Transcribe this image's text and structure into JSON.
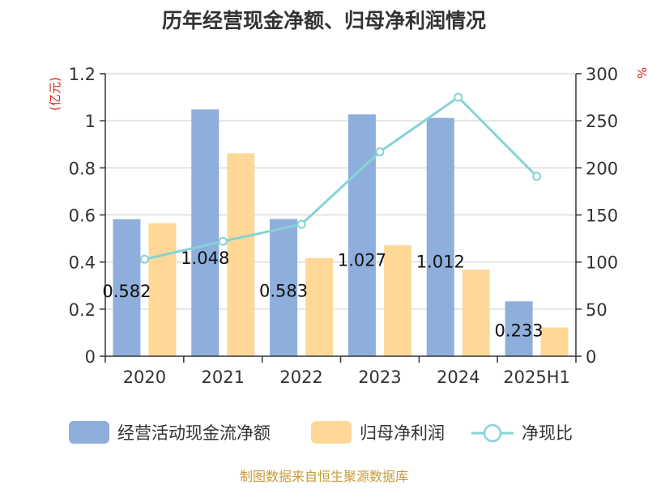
{
  "chart_data": {
    "type": "bar",
    "title": "历年经营现金净额、归母净利润情况",
    "categories": [
      "2020",
      "2021",
      "2022",
      "2023",
      "2024",
      "2025H1"
    ],
    "y_left_label": "(亿元)",
    "y_right_label": "%",
    "ylim_left": [
      0,
      1.2
    ],
    "yticks_left": [
      "0",
      "0.2",
      "0.4",
      "0.6",
      "0.8",
      "1",
      "1.2"
    ],
    "ylim_right": [
      0,
      300
    ],
    "yticks_right": [
      "0",
      "50",
      "100",
      "150",
      "200",
      "250",
      "300"
    ],
    "grid": true,
    "legend_position": "bottom",
    "series": [
      {
        "name": "经营活动现金流净额",
        "kind": "bar",
        "axis": "left",
        "color": "#8eaedb",
        "values": [
          0.582,
          1.048,
          0.583,
          1.027,
          1.012,
          0.233
        ],
        "labels": [
          "0.582",
          "1.048",
          "0.583",
          "1.027",
          "1.012",
          "0.233"
        ]
      },
      {
        "name": "归母净利润",
        "kind": "bar",
        "axis": "left",
        "color": "#ffd898",
        "values": [
          0.565,
          0.862,
          0.417,
          0.472,
          0.368,
          0.122
        ]
      },
      {
        "name": "净现比",
        "kind": "line",
        "axis": "right",
        "color": "#86d3d6",
        "values": [
          103,
          122,
          140,
          217,
          275,
          191
        ]
      }
    ]
  },
  "footer": {
    "source": "制图数据来自恒生聚源数据库"
  }
}
